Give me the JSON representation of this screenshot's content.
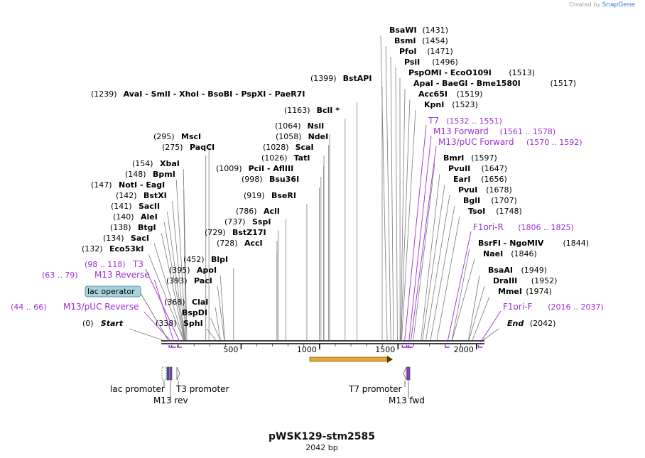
{
  "credit": {
    "prefix": "Created by",
    "brand": "SnapGene"
  },
  "map": {
    "name": "pWSK129-stm2585",
    "length_label": "2042 bp",
    "length": 2042,
    "ruler_ticks": [
      "500",
      "1000",
      "1500",
      "2000"
    ]
  },
  "colors": {
    "enzyme": "#000000",
    "feature": "#9b30d9",
    "line": "#7a7a7a",
    "lac_box": "#a7d3df",
    "orf": "#e8a73a"
  },
  "labels": [
    {
      "pos": "(0)",
      "name": "Start",
      "italic": true,
      "bp": 0
    },
    {
      "pos": "(2042)",
      "name": "End",
      "italic": true,
      "bp": 2042,
      "suffix_pos": true
    },
    {
      "pos": "(338)",
      "name": "SphI",
      "bp": 338
    },
    {
      "pos": "(368)",
      "name": "ClaI",
      "bp": 368
    },
    {
      "pos": "",
      "name": "BspDI",
      "bp": 368
    },
    {
      "pos": "(393)",
      "name": "PacI",
      "bp": 393
    },
    {
      "pos": "(395)",
      "name": "ApoI",
      "bp": 395
    },
    {
      "pos": "(452)",
      "name": "BlpI",
      "bp": 452
    },
    {
      "pos": "(132)",
      "name": "Eco53kI",
      "bp": 132
    },
    {
      "pos": "(134)",
      "name": "SacI",
      "bp": 134
    },
    {
      "pos": "(138)",
      "name": "BtgI",
      "bp": 138
    },
    {
      "pos": "(140)",
      "name": "AleI",
      "bp": 140
    },
    {
      "pos": "(141)",
      "name": "SacII",
      "bp": 141
    },
    {
      "pos": "(142)",
      "name": "BstXI",
      "bp": 142
    },
    {
      "pos": "(147)",
      "name": "NotI  - EagI",
      "bp": 147
    },
    {
      "pos": "(148)",
      "name": "BpmI",
      "bp": 148
    },
    {
      "pos": "(154)",
      "name": "XbaI",
      "bp": 154
    },
    {
      "pos": "(275)",
      "name": "PaqCI",
      "bp": 275
    },
    {
      "pos": "(295)",
      "name": "MscI",
      "bp": 295
    },
    {
      "pos": "(1239)",
      "name": "AvaI  - SmlI  - XhoI  - BsoBI  - PspXI  - PaeR7I",
      "bp": 1239
    },
    {
      "pos": "(728)",
      "name": "AccI",
      "bp": 728
    },
    {
      "pos": "(729)",
      "name": "BstZ17I",
      "bp": 729
    },
    {
      "pos": "(737)",
      "name": "SspI",
      "bp": 737
    },
    {
      "pos": "(786)",
      "name": "AclI",
      "bp": 786
    },
    {
      "pos": "(919)",
      "name": "BseRI",
      "bp": 919
    },
    {
      "pos": "(998)",
      "name": "Bsu36I",
      "bp": 998
    },
    {
      "pos": "(1009)",
      "name": "PciI  - AflIII",
      "bp": 1009
    },
    {
      "pos": "(1026)",
      "name": "TatI",
      "bp": 1026
    },
    {
      "pos": "(1028)",
      "name": "ScaI",
      "bp": 1028
    },
    {
      "pos": "(1058)",
      "name": "NdeI",
      "bp": 1058
    },
    {
      "pos": "(1064)",
      "name": "NsiI",
      "bp": 1064
    },
    {
      "pos": "(1163)",
      "name": "BclI *",
      "bp": 1163
    },
    {
      "pos": "(1399)",
      "name": "BstAPI",
      "bp": 1399
    },
    {
      "pos": "(1431)",
      "name": "BsaWI",
      "bp": 1431,
      "suffix_pos": true
    },
    {
      "pos": "(1454)",
      "name": "BsmI",
      "bp": 1454,
      "suffix_pos": true
    },
    {
      "pos": "(1471)",
      "name": "PfoI",
      "bp": 1471,
      "suffix_pos": true
    },
    {
      "pos": "(1496)",
      "name": "PsiI",
      "bp": 1496,
      "suffix_pos": true
    },
    {
      "pos": "(1513)",
      "name": "PspOMI  - EcoO109I",
      "bp": 1513,
      "suffix_pos": true
    },
    {
      "pos": "(1517)",
      "name": "ApaI  - BaeGI  - Bme1580I",
      "bp": 1517,
      "suffix_pos": true
    },
    {
      "pos": "(1519)",
      "name": "Acc65I",
      "bp": 1519,
      "suffix_pos": true
    },
    {
      "pos": "(1523)",
      "name": "KpnI",
      "bp": 1523,
      "suffix_pos": true
    },
    {
      "pos": "(1597)",
      "name": "BmrI",
      "bp": 1597,
      "suffix_pos": true
    },
    {
      "pos": "(1647)",
      "name": "PvuII",
      "bp": 1647,
      "suffix_pos": true
    },
    {
      "pos": "(1656)",
      "name": "EarI",
      "bp": 1656,
      "suffix_pos": true
    },
    {
      "pos": "(1678)",
      "name": "PvuI",
      "bp": 1678,
      "suffix_pos": true
    },
    {
      "pos": "(1707)",
      "name": "BglI",
      "bp": 1707,
      "suffix_pos": true
    },
    {
      "pos": "(1748)",
      "name": "TsoI",
      "bp": 1748,
      "suffix_pos": true
    },
    {
      "pos": "(1844)",
      "name": "BsrFI  - NgoMIV",
      "bp": 1844,
      "suffix_pos": true
    },
    {
      "pos": "(1846)",
      "name": "NaeI",
      "bp": 1846,
      "suffix_pos": true
    },
    {
      "pos": "(1949)",
      "name": "BsaAI",
      "bp": 1949,
      "suffix_pos": true
    },
    {
      "pos": "(1952)",
      "name": "DraIII",
      "bp": 1952,
      "suffix_pos": true
    },
    {
      "pos": "(1974)",
      "name": "MmeI",
      "bp": 1974,
      "suffix_pos": true
    }
  ],
  "features": [
    {
      "name": "M13/pUC Reverse",
      "range": "(44 .. 66)",
      "bp": 55
    },
    {
      "name": "M13 Reverse",
      "range": "(63 .. 79)",
      "bp": 71
    },
    {
      "name": "T3",
      "range": "(98 .. 118)",
      "bp": 108
    },
    {
      "name": "T7",
      "range": "(1532 .. 1551)",
      "bp": 1541
    },
    {
      "name": "M13 Forward",
      "range": "(1561 .. 1578)",
      "bp": 1569
    },
    {
      "name": "M13/pUC Forward",
      "range": "(1570 .. 1592)",
      "bp": 1581
    },
    {
      "name": "F1ori-R",
      "range": "(1806 .. 1825)",
      "bp": 1815
    },
    {
      "name": "F1ori-F",
      "range": "(2016 .. 2037)",
      "bp": 2026
    }
  ],
  "lac_operator": {
    "label": "lac operator",
    "bp": 40
  },
  "bottom_labels": [
    {
      "text": "lac promoter",
      "bp": 25
    },
    {
      "text": "T3 promoter",
      "bp": 105
    },
    {
      "text": "M13 rev",
      "bp": 55
    },
    {
      "text": "T7 promoter",
      "bp": 1520
    },
    {
      "text": "M13 fwd",
      "bp": 1570
    }
  ]
}
